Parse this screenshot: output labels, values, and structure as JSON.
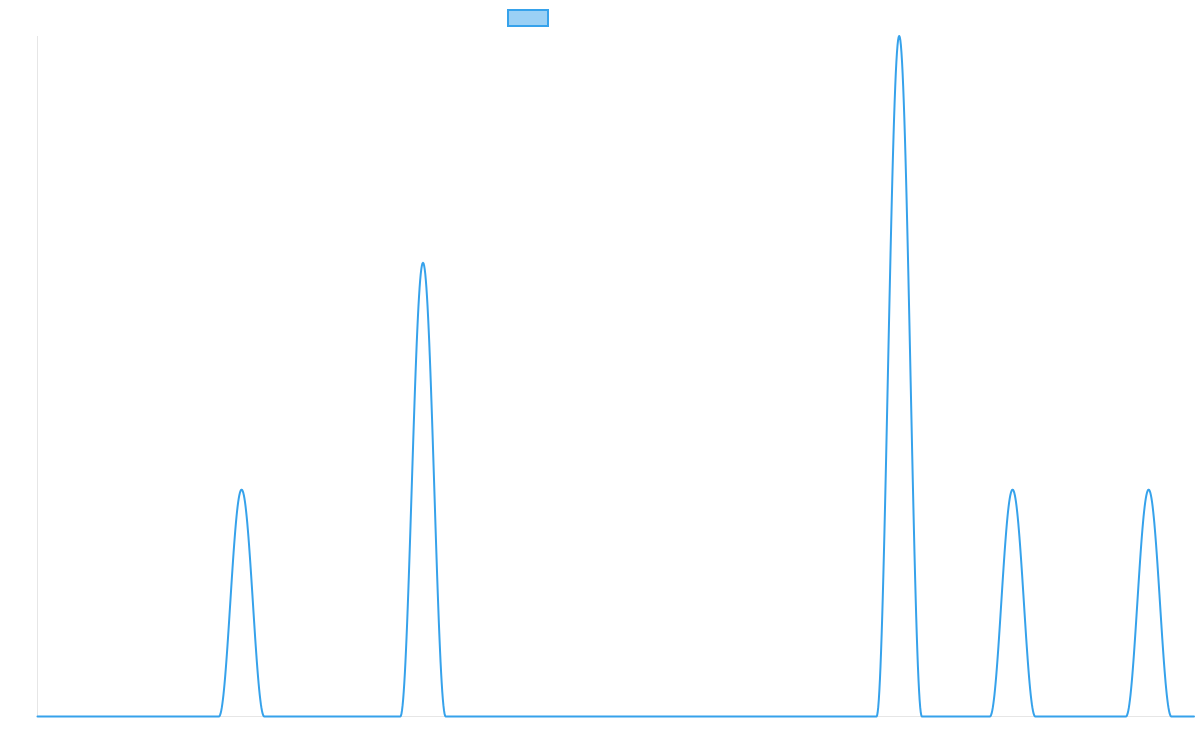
{
  "chart_data": {
    "type": "line",
    "title": "",
    "xlabel": "",
    "ylabel": "",
    "grid": false,
    "legend_position": "top-center",
    "line_color": "#36a2eb",
    "fill_color": "#9ad0f5",
    "ylim": [
      0,
      3
    ],
    "xlim": [
      0,
      1020
    ],
    "series": [
      {
        "peaks": [
          {
            "x": 180,
            "height": 1,
            "half_width": 20
          },
          {
            "x": 340,
            "height": 2,
            "half_width": 20
          },
          {
            "x": 760,
            "height": 3,
            "half_width": 20
          },
          {
            "x": 860,
            "height": 1,
            "half_width": 20
          },
          {
            "x": 980,
            "height": 1,
            "half_width": 20
          }
        ]
      }
    ]
  }
}
